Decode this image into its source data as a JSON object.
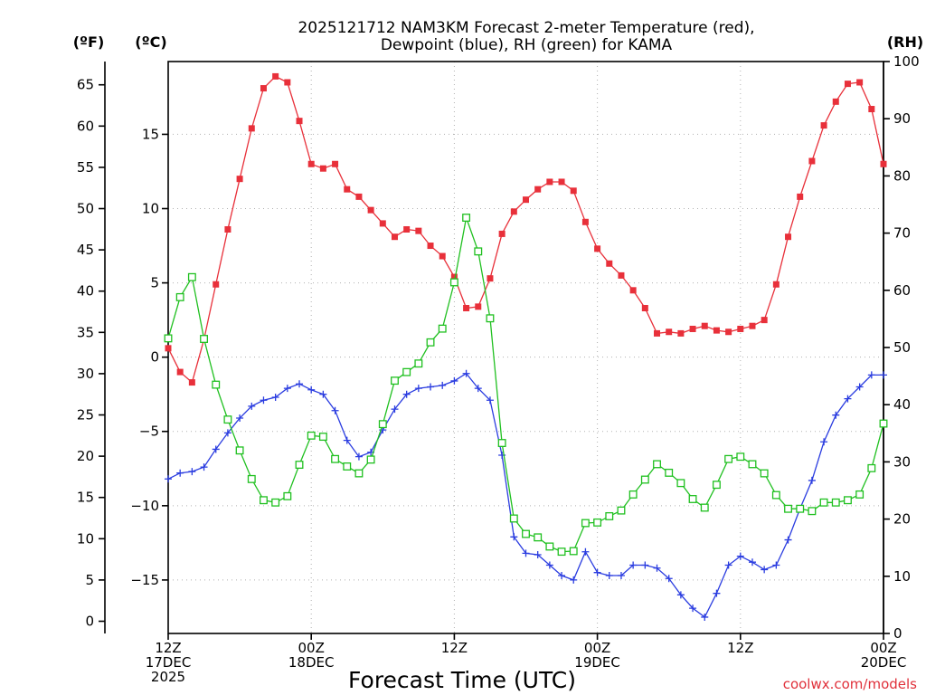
{
  "chart_data": {
    "type": "line",
    "title_line1": "2025121712 NAM3KM Forecast 2-meter Temperature (red),",
    "title_line2": "Dewpoint (blue), RH (green) for KAMA",
    "xlabel": "Forecast Time (UTC)",
    "credit": "coolwx.com/models",
    "unit_f": "(ºF)",
    "unit_c": "(ºC)",
    "unit_rh": "(RH)",
    "x_hours_range": [
      0,
      60
    ],
    "c_range": [
      -18.6,
      19.9
    ],
    "rh_range": [
      0,
      100
    ],
    "x_ticks": [
      {
        "hour": 0,
        "line1": "12Z",
        "line2": "17DEC",
        "line3": "2025"
      },
      {
        "hour": 12,
        "line1": "00Z",
        "line2": "18DEC",
        "line3": ""
      },
      {
        "hour": 24,
        "line1": "12Z",
        "line2": "",
        "line3": ""
      },
      {
        "hour": 36,
        "line1": "00Z",
        "line2": "19DEC",
        "line3": ""
      },
      {
        "hour": 48,
        "line1": "12Z",
        "line2": "",
        "line3": ""
      },
      {
        "hour": 60,
        "line1": "00Z",
        "line2": "20DEC",
        "line3": ""
      }
    ],
    "c_ticks": [
      {
        "value": -15,
        "label": "−15"
      },
      {
        "value": -10,
        "label": "−10"
      },
      {
        "value": -5,
        "label": "−5"
      },
      {
        "value": 0,
        "label": "0"
      },
      {
        "value": 5,
        "label": "5"
      },
      {
        "value": 10,
        "label": "10"
      },
      {
        "value": 15,
        "label": "15"
      }
    ],
    "f_ticks": [
      {
        "value": 0,
        "label": "0"
      },
      {
        "value": 5,
        "label": "5"
      },
      {
        "value": 10,
        "label": "10"
      },
      {
        "value": 15,
        "label": "15"
      },
      {
        "value": 20,
        "label": "20"
      },
      {
        "value": 25,
        "label": "25"
      },
      {
        "value": 30,
        "label": "30"
      },
      {
        "value": 35,
        "label": "35"
      },
      {
        "value": 40,
        "label": "40"
      },
      {
        "value": 45,
        "label": "45"
      },
      {
        "value": 50,
        "label": "50"
      },
      {
        "value": 55,
        "label": "55"
      },
      {
        "value": 60,
        "label": "60"
      },
      {
        "value": 65,
        "label": "65"
      }
    ],
    "rh_ticks": [
      {
        "value": 0,
        "label": "0"
      },
      {
        "value": 10,
        "label": "10"
      },
      {
        "value": 20,
        "label": "20"
      },
      {
        "value": 30,
        "label": "30"
      },
      {
        "value": 40,
        "label": "40"
      },
      {
        "value": 50,
        "label": "50"
      },
      {
        "value": 60,
        "label": "60"
      },
      {
        "value": 70,
        "label": "70"
      },
      {
        "value": 80,
        "label": "80"
      },
      {
        "value": 90,
        "label": "90"
      },
      {
        "value": 100,
        "label": "100"
      }
    ],
    "series": [
      {
        "name": "Temperature",
        "color": "#e8303a",
        "marker": "filled-square",
        "axis": "celsius",
        "hours": [
          0,
          1,
          2,
          3,
          4,
          5,
          6,
          7,
          8,
          9,
          10,
          11,
          12,
          13,
          14,
          15,
          16,
          17,
          18,
          19,
          20,
          21,
          22,
          23,
          24,
          25,
          26,
          27,
          28,
          29,
          30,
          31,
          32,
          33,
          34,
          35,
          36,
          37,
          38,
          39,
          40,
          41,
          42,
          43,
          44,
          45,
          46,
          47,
          48,
          49,
          50,
          51,
          52,
          53,
          54,
          55,
          56,
          57,
          58,
          59,
          60
        ],
        "values": [
          0.6,
          -1,
          -1.7,
          1.2,
          4.9,
          8.6,
          12.0,
          15.4,
          18.1,
          18.9,
          18.5,
          15.9,
          13.0,
          12.7,
          13.0,
          11.3,
          10.8,
          9.9,
          9.0,
          8.1,
          8.6,
          8.5,
          7.5,
          6.8,
          5.4,
          3.3,
          3.4,
          5.3,
          8.3,
          9.8,
          10.6,
          11.3,
          11.8,
          11.8,
          11.2,
          9.1,
          7.3,
          6.3,
          5.5,
          4.5,
          3.3,
          1.6,
          1.7,
          1.6,
          1.9,
          2.1,
          1.8,
          1.7,
          1.9,
          2.1,
          2.5,
          4.9,
          8.1,
          10.8,
          13.2,
          15.6,
          17.2,
          18.4,
          18.5,
          16.7,
          13.0
        ]
      },
      {
        "name": "Dewpoint",
        "color": "#2a3ce0",
        "marker": "plus",
        "axis": "celsius",
        "hours": [
          0,
          1,
          2,
          3,
          4,
          5,
          6,
          7,
          8,
          9,
          10,
          11,
          12,
          13,
          14,
          15,
          16,
          17,
          18,
          19,
          20,
          21,
          22,
          23,
          24,
          25,
          26,
          27,
          28,
          29,
          30,
          31,
          32,
          33,
          34,
          35,
          36,
          37,
          38,
          39,
          40,
          41,
          42,
          43,
          44,
          45,
          46,
          47,
          48,
          49,
          50,
          51,
          52,
          53,
          54,
          55,
          56,
          57,
          58,
          59,
          60
        ],
        "values": [
          -8.2,
          -7.8,
          -7.7,
          -7.4,
          -6.2,
          -5.1,
          -4.1,
          -3.3,
          -2.9,
          -2.7,
          -2.1,
          -1.8,
          -2.2,
          -2.5,
          -3.6,
          -5.6,
          -6.7,
          -6.4,
          -4.9,
          -3.5,
          -2.5,
          -2.1,
          -2.0,
          -1.9,
          -1.6,
          -1.1,
          -2.1,
          -2.9,
          -6.6,
          -12.1,
          -13.2,
          -13.3,
          -14.0,
          -14.7,
          -15.0,
          -13.1,
          -14.5,
          -14.7,
          -14.7,
          -14.0,
          -14.0,
          -14.2,
          -14.9,
          -16.0,
          -16.9,
          -17.5,
          -15.9,
          -14.0,
          -13.4,
          -13.8,
          -14.3,
          -14.0,
          -12.3,
          -10.2,
          -8.3,
          -5.7,
          -3.9,
          -2.8,
          -2.0,
          -1.2,
          -1.2
        ]
      },
      {
        "name": "RH",
        "color": "#20c020",
        "marker": "open-square",
        "axis": "rh",
        "hours": [
          0,
          1,
          2,
          3,
          4,
          5,
          6,
          7,
          8,
          9,
          10,
          11,
          12,
          13,
          14,
          15,
          16,
          17,
          18,
          19,
          20,
          21,
          22,
          23,
          24,
          25,
          26,
          27,
          28,
          29,
          30,
          31,
          32,
          33,
          34,
          35,
          36,
          37,
          38,
          39,
          40,
          41,
          42,
          43,
          44,
          45,
          46,
          47,
          48,
          49,
          50,
          51,
          52,
          53,
          54,
          55,
          56,
          57,
          58,
          59,
          60
        ],
        "values": [
          51.6,
          58.8,
          62.3,
          51.5,
          43.5,
          37.4,
          32.0,
          27.0,
          23.3,
          22.9,
          24.0,
          29.5,
          34.6,
          34.4,
          30.5,
          29.2,
          28.0,
          30.4,
          36.6,
          44.2,
          45.7,
          47.2,
          50.9,
          53.3,
          61.4,
          72.7,
          66.8,
          55.1,
          33.3,
          20.1,
          17.4,
          16.8,
          15.2,
          14.3,
          14.4,
          19.3,
          19.4,
          20.5,
          21.5,
          24.3,
          26.9,
          29.6,
          28.1,
          26.3,
          23.5,
          22.0,
          26.0,
          30.5,
          30.9,
          29.6,
          28.0,
          24.2,
          21.8,
          21.8,
          21.4,
          22.9,
          22.9,
          23.3,
          24.3,
          28.9,
          36.7
        ]
      }
    ]
  }
}
